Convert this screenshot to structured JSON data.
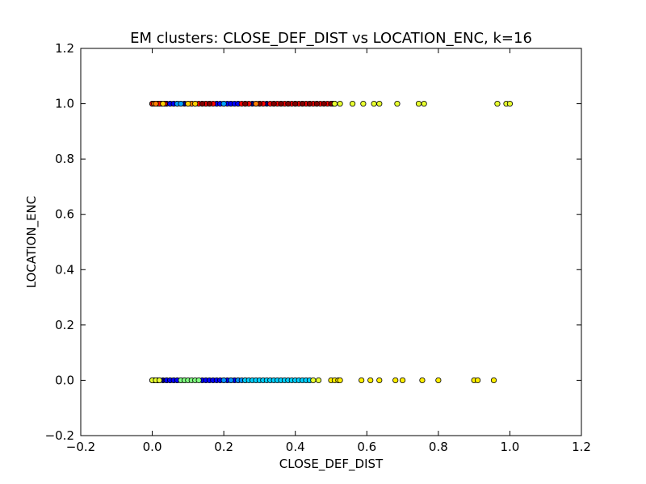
{
  "chart_data": {
    "type": "scatter",
    "title": "EM clusters: CLOSE_DEF_DIST vs LOCATION_ENC, k=16",
    "xlabel": "CLOSE_DEF_DIST",
    "ylabel": "LOCATION_ENC",
    "xlim": [
      -0.2,
      1.2
    ],
    "ylim": [
      -0.2,
      1.2
    ],
    "xticks": [
      -0.2,
      0.0,
      0.2,
      0.4,
      0.6,
      0.8,
      1.0,
      1.2
    ],
    "yticks": [
      -0.2,
      0.0,
      0.2,
      0.4,
      0.6,
      0.8,
      1.0,
      1.2
    ],
    "xtick_labels": [
      "−0.2",
      "0.0",
      "0.2",
      "0.4",
      "0.6",
      "0.8",
      "1.0",
      "1.2"
    ],
    "ytick_labels": [
      "−0.2",
      "0.0",
      "0.2",
      "0.4",
      "0.6",
      "0.8",
      "1.0",
      "1.2"
    ],
    "grid": false,
    "legend": "none",
    "series": [
      {
        "color": "#000080",
        "y": 1.0,
        "x": [
          0.0,
          0.005,
          0.01,
          0.015,
          0.02,
          0.025,
          0.03,
          0.035,
          0.04,
          0.05,
          0.06,
          0.07,
          0.08,
          0.09,
          0.1,
          0.11,
          0.12,
          0.14,
          0.16,
          0.18,
          0.2,
          0.22,
          0.24,
          0.26,
          0.28,
          0.3,
          0.32,
          0.34,
          0.36,
          0.38,
          0.4,
          0.42,
          0.44,
          0.46
        ]
      },
      {
        "color": "#0000ff",
        "y": 1.0,
        "x": [
          0.03,
          0.04,
          0.05,
          0.06,
          0.07,
          0.1,
          0.12,
          0.15,
          0.18,
          0.19,
          0.2,
          0.21,
          0.22,
          0.23,
          0.24
        ]
      },
      {
        "color": "#ff0000",
        "y": 1.0,
        "x": [
          0.0,
          0.02,
          0.035,
          0.13,
          0.15,
          0.17,
          0.25,
          0.27,
          0.29,
          0.31,
          0.33,
          0.35,
          0.37,
          0.39,
          0.41,
          0.43,
          0.45,
          0.47,
          0.49,
          0.505
        ]
      },
      {
        "color": "#800000",
        "y": 1.0,
        "x": [
          0.14,
          0.16,
          0.26,
          0.3,
          0.34,
          0.36,
          0.38,
          0.4,
          0.42,
          0.44,
          0.46,
          0.48,
          0.5,
          0.51
        ]
      },
      {
        "color": "#ff8000",
        "y": 1.0,
        "x": [
          0.005,
          0.01,
          0.11,
          0.29
        ]
      },
      {
        "color": "#ffd000",
        "y": 1.0,
        "x": [
          0.03,
          0.1,
          0.12
        ]
      },
      {
        "color": "#00a0ff",
        "y": 1.0,
        "x": [
          0.07,
          0.08,
          0.2
        ]
      },
      {
        "color": "#e8ff30",
        "y": 1.0,
        "x": [
          0.51,
          0.525,
          0.56,
          0.59,
          0.62,
          0.635,
          0.685,
          0.745,
          0.76,
          0.965,
          0.99,
          1.0
        ]
      },
      {
        "color": "#000080",
        "y": 0.0,
        "x": [
          0.0,
          0.005,
          0.01,
          0.015,
          0.02,
          0.03,
          0.04,
          0.05,
          0.06,
          0.07,
          0.08,
          0.09
        ]
      },
      {
        "color": "#0000ff",
        "y": 0.0,
        "x": [
          0.04,
          0.05,
          0.06,
          0.07,
          0.14,
          0.15,
          0.16,
          0.17,
          0.18,
          0.19,
          0.2,
          0.21,
          0.22,
          0.23,
          0.24
        ]
      },
      {
        "color": "#0090ff",
        "y": 0.0,
        "x": [
          0.2,
          0.22,
          0.24,
          0.25,
          0.26
        ]
      },
      {
        "color": "#00d0ff",
        "y": 0.0,
        "x": [
          0.26,
          0.27,
          0.28,
          0.29,
          0.3,
          0.31,
          0.32,
          0.33,
          0.34,
          0.35,
          0.36,
          0.37,
          0.38,
          0.39,
          0.4,
          0.41,
          0.42,
          0.43,
          0.44
        ]
      },
      {
        "color": "#80ff80",
        "y": 0.0,
        "x": [
          0.08,
          0.09,
          0.1,
          0.11,
          0.12,
          0.13
        ]
      },
      {
        "color": "#e8ff30",
        "y": 0.0,
        "x": [
          0.0,
          0.01,
          0.02,
          0.45,
          0.465
        ]
      },
      {
        "color": "#ffee00",
        "y": 0.0,
        "x": [
          0.5,
          0.51,
          0.52,
          0.525,
          0.585,
          0.61,
          0.635,
          0.68,
          0.7,
          0.755,
          0.8,
          0.9,
          0.91,
          0.955
        ]
      }
    ]
  }
}
